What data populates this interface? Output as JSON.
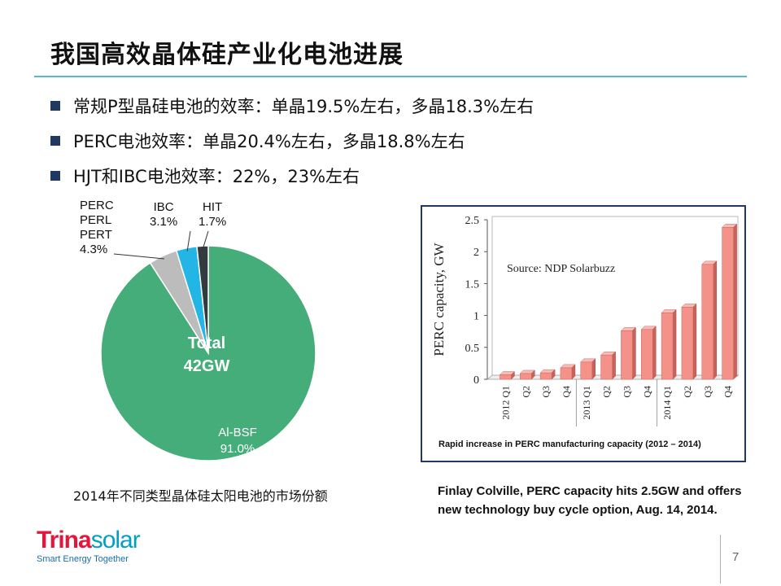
{
  "slide": {
    "title": "我国高效晶体硅产业化电池进展",
    "bullets": [
      "常规P型晶硅电池的效率：单晶19.5%左右，多晶18.3%左右",
      "PERC电池效率：单晶20.4%左右，多晶18.8%左右",
      "HJT和IBC电池效率：22%，23%左右"
    ],
    "page_number": "7"
  },
  "logo": {
    "brand_part1": "Trina",
    "brand_part2": "solar",
    "tagline": "Smart Energy Together"
  },
  "pie_caption": "2014年不同类型晶体硅太阳电池的市场份额",
  "bar_caption": "Rapid increase in PERC manufacturing capacity (2012 – 2014)",
  "reference": {
    "line1": "Finlay Colville, PERC capacity hits 2.5GW and offers",
    "line2": "new technology buy cycle option, Aug. 14, 2014."
  },
  "chart_data": [
    {
      "type": "pie",
      "center_label": [
        "Total",
        "42GW"
      ],
      "slices": [
        {
          "label": [
            "Al-BSF",
            "91.0%"
          ],
          "value": 91.0,
          "color": "#45ad7a"
        },
        {
          "label": [
            "PERC",
            "PERL",
            "PERT",
            "4.3%"
          ],
          "value": 4.3,
          "color": "#bcbcbc"
        },
        {
          "label": [
            "IBC",
            "3.1%"
          ],
          "value": 3.1,
          "color": "#22b5e6"
        },
        {
          "label": [
            "HIT",
            "1.7%"
          ],
          "value": 1.7,
          "color": "#333a40"
        }
      ]
    },
    {
      "type": "bar",
      "annotation": "Source: NDP Solarbuzz",
      "ylabel": "PERC capacity, GW",
      "ylim": [
        0,
        2.5
      ],
      "yticks": [
        "0",
        "0.5",
        "1",
        "1.5",
        "2",
        "2.5"
      ],
      "categories": [
        "2012 Q1",
        "Q2",
        "Q3",
        "Q4",
        "2013 Q1",
        "Q2",
        "Q3",
        "Q4",
        "2014 Q1",
        "Q2",
        "Q3",
        "Q4"
      ],
      "values": [
        0.07,
        0.09,
        0.1,
        0.18,
        0.27,
        0.38,
        0.76,
        0.78,
        1.04,
        1.13,
        1.8,
        2.38
      ],
      "bar_color": "#f4928a",
      "grid": false
    }
  ]
}
